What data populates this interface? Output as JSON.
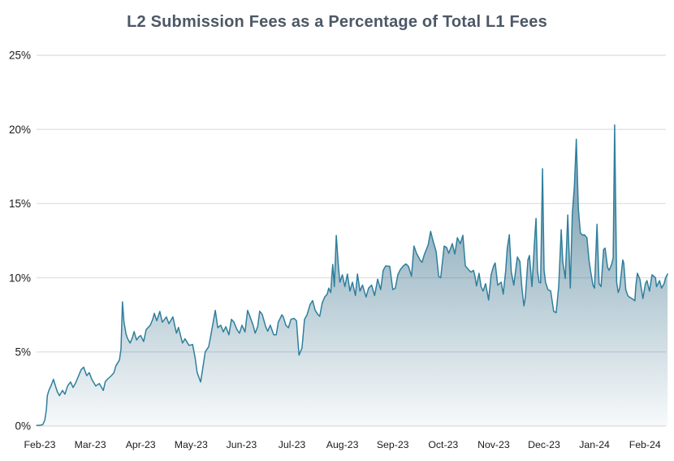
{
  "title": "L2 Submission Fees as a Percentage of Total L1 Fees",
  "colors": {
    "line": "#2e7f9d",
    "fill_base_rgb": "56,112,138",
    "grid": "#e2e2e2",
    "title_text": "#4d5866",
    "axis_text": "#1a1a1a",
    "background": "#ffffff"
  },
  "chart_data": {
    "type": "area",
    "title": "L2 Submission Fees as a Percentage of Total L1 Fees",
    "xlabel": "",
    "ylabel": "",
    "unit": "%",
    "grid": "horizontal",
    "legend": "none",
    "ylim": [
      0,
      25
    ],
    "y_ticks": [
      "0%",
      "5%",
      "10%",
      "15%",
      "20%",
      "25%"
    ],
    "y_tick_values": [
      0,
      5,
      10,
      15,
      20,
      25
    ],
    "x_ticks": [
      "Feb-23",
      "Mar-23",
      "Apr-23",
      "May-23",
      "Jun-23",
      "Jul-23",
      "Aug-23",
      "Sep-23",
      "Oct-23",
      "Nov-23",
      "Dec-23",
      "Jan-24",
      "Feb-24"
    ],
    "x_unit": "months_since_Feb-23",
    "points": [
      [
        -0.06,
        0.05
      ],
      [
        0,
        0.05
      ],
      [
        0.06,
        0.1
      ],
      [
        0.1,
        0.4
      ],
      [
        0.13,
        1.1
      ],
      [
        0.15,
        2.05
      ],
      [
        0.18,
        2.4
      ],
      [
        0.23,
        2.78
      ],
      [
        0.27,
        3.15
      ],
      [
        0.32,
        2.6
      ],
      [
        0.35,
        2.3
      ],
      [
        0.39,
        2.05
      ],
      [
        0.45,
        2.4
      ],
      [
        0.5,
        2.15
      ],
      [
        0.55,
        2.7
      ],
      [
        0.61,
        2.97
      ],
      [
        0.66,
        2.6
      ],
      [
        0.71,
        2.9
      ],
      [
        0.74,
        3.15
      ],
      [
        0.82,
        3.8
      ],
      [
        0.87,
        3.97
      ],
      [
        0.93,
        3.4
      ],
      [
        0.98,
        3.6
      ],
      [
        1.03,
        3.15
      ],
      [
        1.11,
        2.7
      ],
      [
        1.18,
        2.87
      ],
      [
        1.26,
        2.4
      ],
      [
        1.3,
        3.0
      ],
      [
        1.34,
        3.15
      ],
      [
        1.42,
        3.4
      ],
      [
        1.47,
        3.6
      ],
      [
        1.51,
        4.07
      ],
      [
        1.58,
        4.45
      ],
      [
        1.61,
        5.2
      ],
      [
        1.64,
        8.37
      ],
      [
        1.67,
        7.0
      ],
      [
        1.71,
        6.2
      ],
      [
        1.74,
        5.9
      ],
      [
        1.79,
        5.6
      ],
      [
        1.84,
        6.0
      ],
      [
        1.87,
        6.37
      ],
      [
        1.92,
        5.8
      ],
      [
        1.96,
        6.0
      ],
      [
        2.0,
        6.1
      ],
      [
        2.06,
        5.7
      ],
      [
        2.11,
        6.5
      ],
      [
        2.19,
        6.8
      ],
      [
        2.24,
        7.2
      ],
      [
        2.27,
        7.6
      ],
      [
        2.32,
        7.1
      ],
      [
        2.38,
        7.73
      ],
      [
        2.43,
        7.0
      ],
      [
        2.51,
        7.36
      ],
      [
        2.56,
        6.9
      ],
      [
        2.64,
        7.36
      ],
      [
        2.71,
        6.26
      ],
      [
        2.75,
        6.65
      ],
      [
        2.83,
        5.6
      ],
      [
        2.88,
        5.88
      ],
      [
        2.96,
        5.44
      ],
      [
        3.03,
        5.5
      ],
      [
        3.08,
        4.6
      ],
      [
        3.12,
        3.6
      ],
      [
        3.19,
        2.97
      ],
      [
        3.24,
        4.07
      ],
      [
        3.28,
        5.0
      ],
      [
        3.35,
        5.35
      ],
      [
        3.4,
        6.26
      ],
      [
        3.48,
        7.8
      ],
      [
        3.53,
        6.63
      ],
      [
        3.59,
        6.8
      ],
      [
        3.64,
        6.35
      ],
      [
        3.69,
        6.7
      ],
      [
        3.75,
        6.15
      ],
      [
        3.8,
        7.2
      ],
      [
        3.85,
        7.0
      ],
      [
        3.91,
        6.5
      ],
      [
        3.96,
        6.26
      ],
      [
        4.01,
        6.8
      ],
      [
        4.07,
        6.35
      ],
      [
        4.12,
        7.8
      ],
      [
        4.17,
        7.36
      ],
      [
        4.23,
        6.8
      ],
      [
        4.27,
        6.26
      ],
      [
        4.32,
        6.7
      ],
      [
        4.36,
        7.74
      ],
      [
        4.41,
        7.53
      ],
      [
        4.48,
        6.7
      ],
      [
        4.52,
        6.4
      ],
      [
        4.57,
        6.8
      ],
      [
        4.64,
        6.15
      ],
      [
        4.69,
        6.15
      ],
      [
        4.73,
        7.0
      ],
      [
        4.8,
        7.5
      ],
      [
        4.83,
        7.36
      ],
      [
        4.88,
        6.8
      ],
      [
        4.93,
        6.63
      ],
      [
        4.98,
        7.2
      ],
      [
        5.04,
        7.26
      ],
      [
        5.09,
        7.1
      ],
      [
        5.14,
        4.78
      ],
      [
        5.2,
        5.27
      ],
      [
        5.25,
        7.2
      ],
      [
        5.3,
        7.5
      ],
      [
        5.36,
        8.2
      ],
      [
        5.41,
        8.46
      ],
      [
        5.46,
        7.8
      ],
      [
        5.52,
        7.5
      ],
      [
        5.55,
        7.4
      ],
      [
        5.6,
        8.3
      ],
      [
        5.65,
        8.7
      ],
      [
        5.7,
        8.9
      ],
      [
        5.73,
        9.3
      ],
      [
        5.77,
        9.0
      ],
      [
        5.79,
        10.1
      ],
      [
        5.81,
        10.9
      ],
      [
        5.84,
        9.4
      ],
      [
        5.88,
        12.85
      ],
      [
        5.92,
        10.9
      ],
      [
        5.95,
        9.7
      ],
      [
        6.0,
        10.2
      ],
      [
        6.05,
        9.4
      ],
      [
        6.1,
        10.25
      ],
      [
        6.15,
        9.1
      ],
      [
        6.2,
        9.7
      ],
      [
        6.26,
        8.8
      ],
      [
        6.3,
        10.25
      ],
      [
        6.35,
        9.1
      ],
      [
        6.4,
        9.5
      ],
      [
        6.47,
        8.7
      ],
      [
        6.52,
        9.3
      ],
      [
        6.58,
        9.5
      ],
      [
        6.64,
        8.8
      ],
      [
        6.7,
        9.9
      ],
      [
        6.76,
        9.2
      ],
      [
        6.81,
        10.5
      ],
      [
        6.86,
        10.8
      ],
      [
        6.94,
        10.77
      ],
      [
        7.0,
        9.2
      ],
      [
        7.05,
        9.3
      ],
      [
        7.1,
        10.2
      ],
      [
        7.15,
        10.55
      ],
      [
        7.21,
        10.8
      ],
      [
        7.26,
        10.93
      ],
      [
        7.31,
        10.77
      ],
      [
        7.37,
        10.1
      ],
      [
        7.42,
        12.14
      ],
      [
        7.47,
        11.65
      ],
      [
        7.54,
        11.2
      ],
      [
        7.58,
        11.04
      ],
      [
        7.63,
        11.6
      ],
      [
        7.7,
        12.2
      ],
      [
        7.75,
        13.13
      ],
      [
        7.79,
        12.58
      ],
      [
        7.86,
        11.76
      ],
      [
        7.91,
        10.1
      ],
      [
        7.95,
        10.0
      ],
      [
        8.02,
        12.14
      ],
      [
        8.07,
        12.03
      ],
      [
        8.11,
        11.65
      ],
      [
        8.18,
        12.3
      ],
      [
        8.23,
        11.6
      ],
      [
        8.28,
        12.7
      ],
      [
        8.34,
        12.3
      ],
      [
        8.39,
        12.86
      ],
      [
        8.44,
        10.8
      ],
      [
        8.5,
        10.55
      ],
      [
        8.55,
        10.38
      ],
      [
        8.6,
        10.5
      ],
      [
        8.63,
        10.1
      ],
      [
        8.66,
        9.45
      ],
      [
        8.71,
        10.3
      ],
      [
        8.75,
        9.4
      ],
      [
        8.79,
        9.1
      ],
      [
        8.84,
        9.6
      ],
      [
        8.9,
        8.5
      ],
      [
        8.95,
        10.2
      ],
      [
        9.0,
        10.8
      ],
      [
        9.03,
        11.0
      ],
      [
        9.08,
        9.5
      ],
      [
        9.15,
        9.7
      ],
      [
        9.19,
        8.9
      ],
      [
        9.24,
        10.5
      ],
      [
        9.27,
        12.0
      ],
      [
        9.31,
        12.9
      ],
      [
        9.35,
        10.4
      ],
      [
        9.4,
        9.5
      ],
      [
        9.47,
        11.4
      ],
      [
        9.52,
        11.1
      ],
      [
        9.56,
        9.3
      ],
      [
        9.6,
        8.1
      ],
      [
        9.63,
        8.7
      ],
      [
        9.68,
        11.2
      ],
      [
        9.71,
        11.5
      ],
      [
        9.76,
        9.4
      ],
      [
        9.81,
        12.4
      ],
      [
        9.84,
        14.0
      ],
      [
        9.87,
        10.5
      ],
      [
        9.9,
        9.7
      ],
      [
        9.93,
        9.65
      ],
      [
        9.97,
        17.35
      ],
      [
        10.0,
        10.5
      ],
      [
        10.03,
        9.67
      ],
      [
        10.08,
        9.18
      ],
      [
        10.13,
        9.12
      ],
      [
        10.19,
        7.74
      ],
      [
        10.24,
        7.64
      ],
      [
        10.29,
        9.4
      ],
      [
        10.34,
        13.24
      ],
      [
        10.37,
        11.1
      ],
      [
        10.42,
        9.95
      ],
      [
        10.47,
        14.23
      ],
      [
        10.52,
        9.3
      ],
      [
        10.56,
        14.34
      ],
      [
        10.6,
        16.15
      ],
      [
        10.64,
        19.34
      ],
      [
        10.68,
        14.67
      ],
      [
        10.72,
        13.02
      ],
      [
        10.77,
        12.86
      ],
      [
        10.8,
        12.9
      ],
      [
        10.85,
        12.7
      ],
      [
        10.89,
        11.2
      ],
      [
        10.92,
        10.5
      ],
      [
        10.97,
        9.5
      ],
      [
        11.0,
        9.3
      ],
      [
        11.05,
        13.6
      ],
      [
        11.09,
        9.6
      ],
      [
        11.13,
        9.4
      ],
      [
        11.18,
        11.9
      ],
      [
        11.21,
        12.0
      ],
      [
        11.26,
        10.7
      ],
      [
        11.29,
        10.5
      ],
      [
        11.34,
        10.9
      ],
      [
        11.37,
        11.35
      ],
      [
        11.4,
        20.3
      ],
      [
        11.44,
        9.7
      ],
      [
        11.47,
        9.0
      ],
      [
        11.5,
        9.3
      ],
      [
        11.56,
        11.2
      ],
      [
        11.58,
        11.0
      ],
      [
        11.62,
        9.2
      ],
      [
        11.66,
        8.8
      ],
      [
        11.69,
        8.7
      ],
      [
        11.74,
        8.6
      ],
      [
        11.8,
        8.45
      ],
      [
        11.82,
        9.45
      ],
      [
        11.85,
        10.3
      ],
      [
        11.9,
        9.9
      ],
      [
        11.96,
        8.6
      ],
      [
        12.01,
        9.6
      ],
      [
        12.04,
        9.8
      ],
      [
        12.09,
        9.1
      ],
      [
        12.14,
        10.2
      ],
      [
        12.21,
        10.0
      ],
      [
        12.23,
        9.4
      ],
      [
        12.29,
        9.8
      ],
      [
        12.33,
        9.3
      ],
      [
        12.38,
        9.6
      ],
      [
        12.41,
        10.0
      ],
      [
        12.45,
        10.25
      ]
    ]
  }
}
